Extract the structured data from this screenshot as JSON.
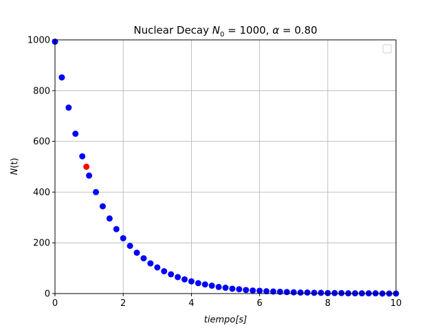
{
  "chart_data": {
    "type": "scatter",
    "title_parts": {
      "prefix": "Nuclear Decay ",
      "n_symbol": "N",
      "n_subscript": "0",
      "n_value": " = 1000,  ",
      "alpha_symbol": "α",
      "alpha_value": " = 0.80"
    },
    "xlabel": {
      "word": "tiempo",
      "unit": "[s]"
    },
    "ylabel": {
      "symbol": "N",
      "arg": "(t)"
    },
    "xlim": [
      0,
      10
    ],
    "ylim": [
      0,
      1000
    ],
    "xticks": [
      0,
      2,
      4,
      6,
      8,
      10
    ],
    "yticks": [
      0,
      200,
      400,
      600,
      800,
      1000
    ],
    "grid": true,
    "legend": "top-right (empty)",
    "series": [
      {
        "color": "#0000ff",
        "x": [
          0.0,
          0.2,
          0.4,
          0.6,
          0.8,
          1.0,
          1.2,
          1.4,
          1.6,
          1.8,
          2.0,
          2.2,
          2.4,
          2.6,
          2.8,
          3.0,
          3.2,
          3.4,
          3.6,
          3.8,
          4.0,
          4.2,
          4.4,
          4.6,
          4.8,
          5.0,
          5.2,
          5.4,
          5.6,
          5.8,
          6.0,
          6.2,
          6.4,
          6.6,
          6.8,
          7.0,
          7.2,
          7.4,
          7.6,
          7.8,
          8.0,
          8.2,
          8.4,
          8.6,
          8.8,
          9.0,
          9.2,
          9.4,
          9.6,
          9.8,
          10.0
        ],
        "y": [
          993,
          852,
          733,
          630,
          541,
          465,
          400,
          344,
          296,
          254,
          218,
          188,
          161,
          139,
          119,
          103,
          88,
          76,
          65,
          56,
          48,
          41,
          36,
          31,
          26,
          23,
          19,
          17,
          14,
          12,
          11,
          9,
          8,
          7,
          6,
          5,
          4,
          4,
          3,
          3,
          2,
          2,
          2,
          1,
          1,
          1,
          1,
          1,
          0,
          0,
          0
        ]
      },
      {
        "color": "#ff0000",
        "x": [
          0.92
        ],
        "y": [
          500
        ]
      }
    ]
  }
}
